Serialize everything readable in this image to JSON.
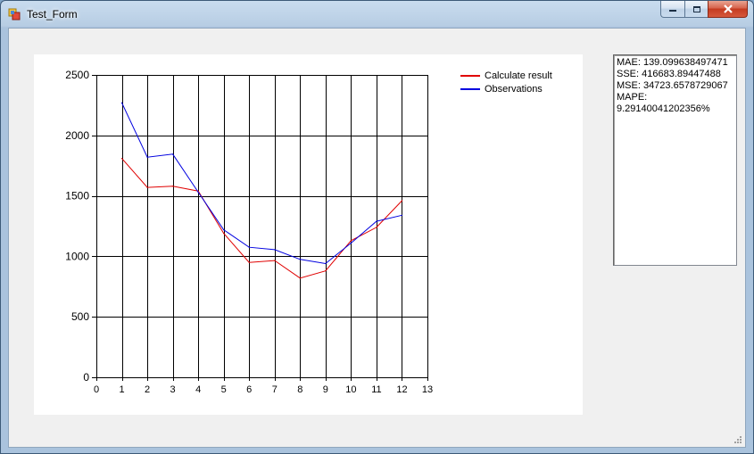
{
  "window": {
    "title": "Test_Form",
    "app_icon": "windows-form-icon",
    "buttons": {
      "minimize": "minimize-icon",
      "maximize": "maximize-icon",
      "close": "close-icon"
    }
  },
  "legend": {
    "calculate": "Calculate result",
    "observations": "Observations"
  },
  "colors": {
    "calculate": "#e00000",
    "observations": "#0000e0"
  },
  "metrics": {
    "mae": "MAE: 139.099638497471",
    "sse": "SSE: 416683.89447488",
    "mse": "MSE: 34723.6578729067",
    "mape_label": "MAPE:",
    "mape_value": "9.29140041202356%"
  },
  "chart_data": {
    "type": "line",
    "x_ticks": [
      0,
      1,
      2,
      3,
      4,
      5,
      6,
      7,
      8,
      9,
      10,
      11,
      12,
      13
    ],
    "y_ticks": [
      0,
      500,
      1000,
      1500,
      2000,
      2500
    ],
    "xlim": [
      0,
      13
    ],
    "ylim": [
      0,
      2500
    ],
    "grid": true,
    "legend_position": "top-right",
    "series": [
      {
        "name": "Calculate result",
        "color": "#e00000",
        "x": [
          1,
          2,
          3,
          4,
          5,
          6,
          7,
          8,
          9,
          10,
          11,
          12
        ],
        "values": [
          1810,
          1570,
          1580,
          1540,
          1190,
          950,
          965,
          820,
          880,
          1130,
          1240,
          1460
        ]
      },
      {
        "name": "Observations",
        "color": "#0000e0",
        "x": [
          1,
          2,
          3,
          4,
          5,
          6,
          7,
          8,
          9,
          10,
          11,
          12
        ],
        "values": [
          2270,
          1820,
          1845,
          1530,
          1220,
          1075,
          1055,
          975,
          940,
          1110,
          1290,
          1340
        ]
      }
    ]
  }
}
